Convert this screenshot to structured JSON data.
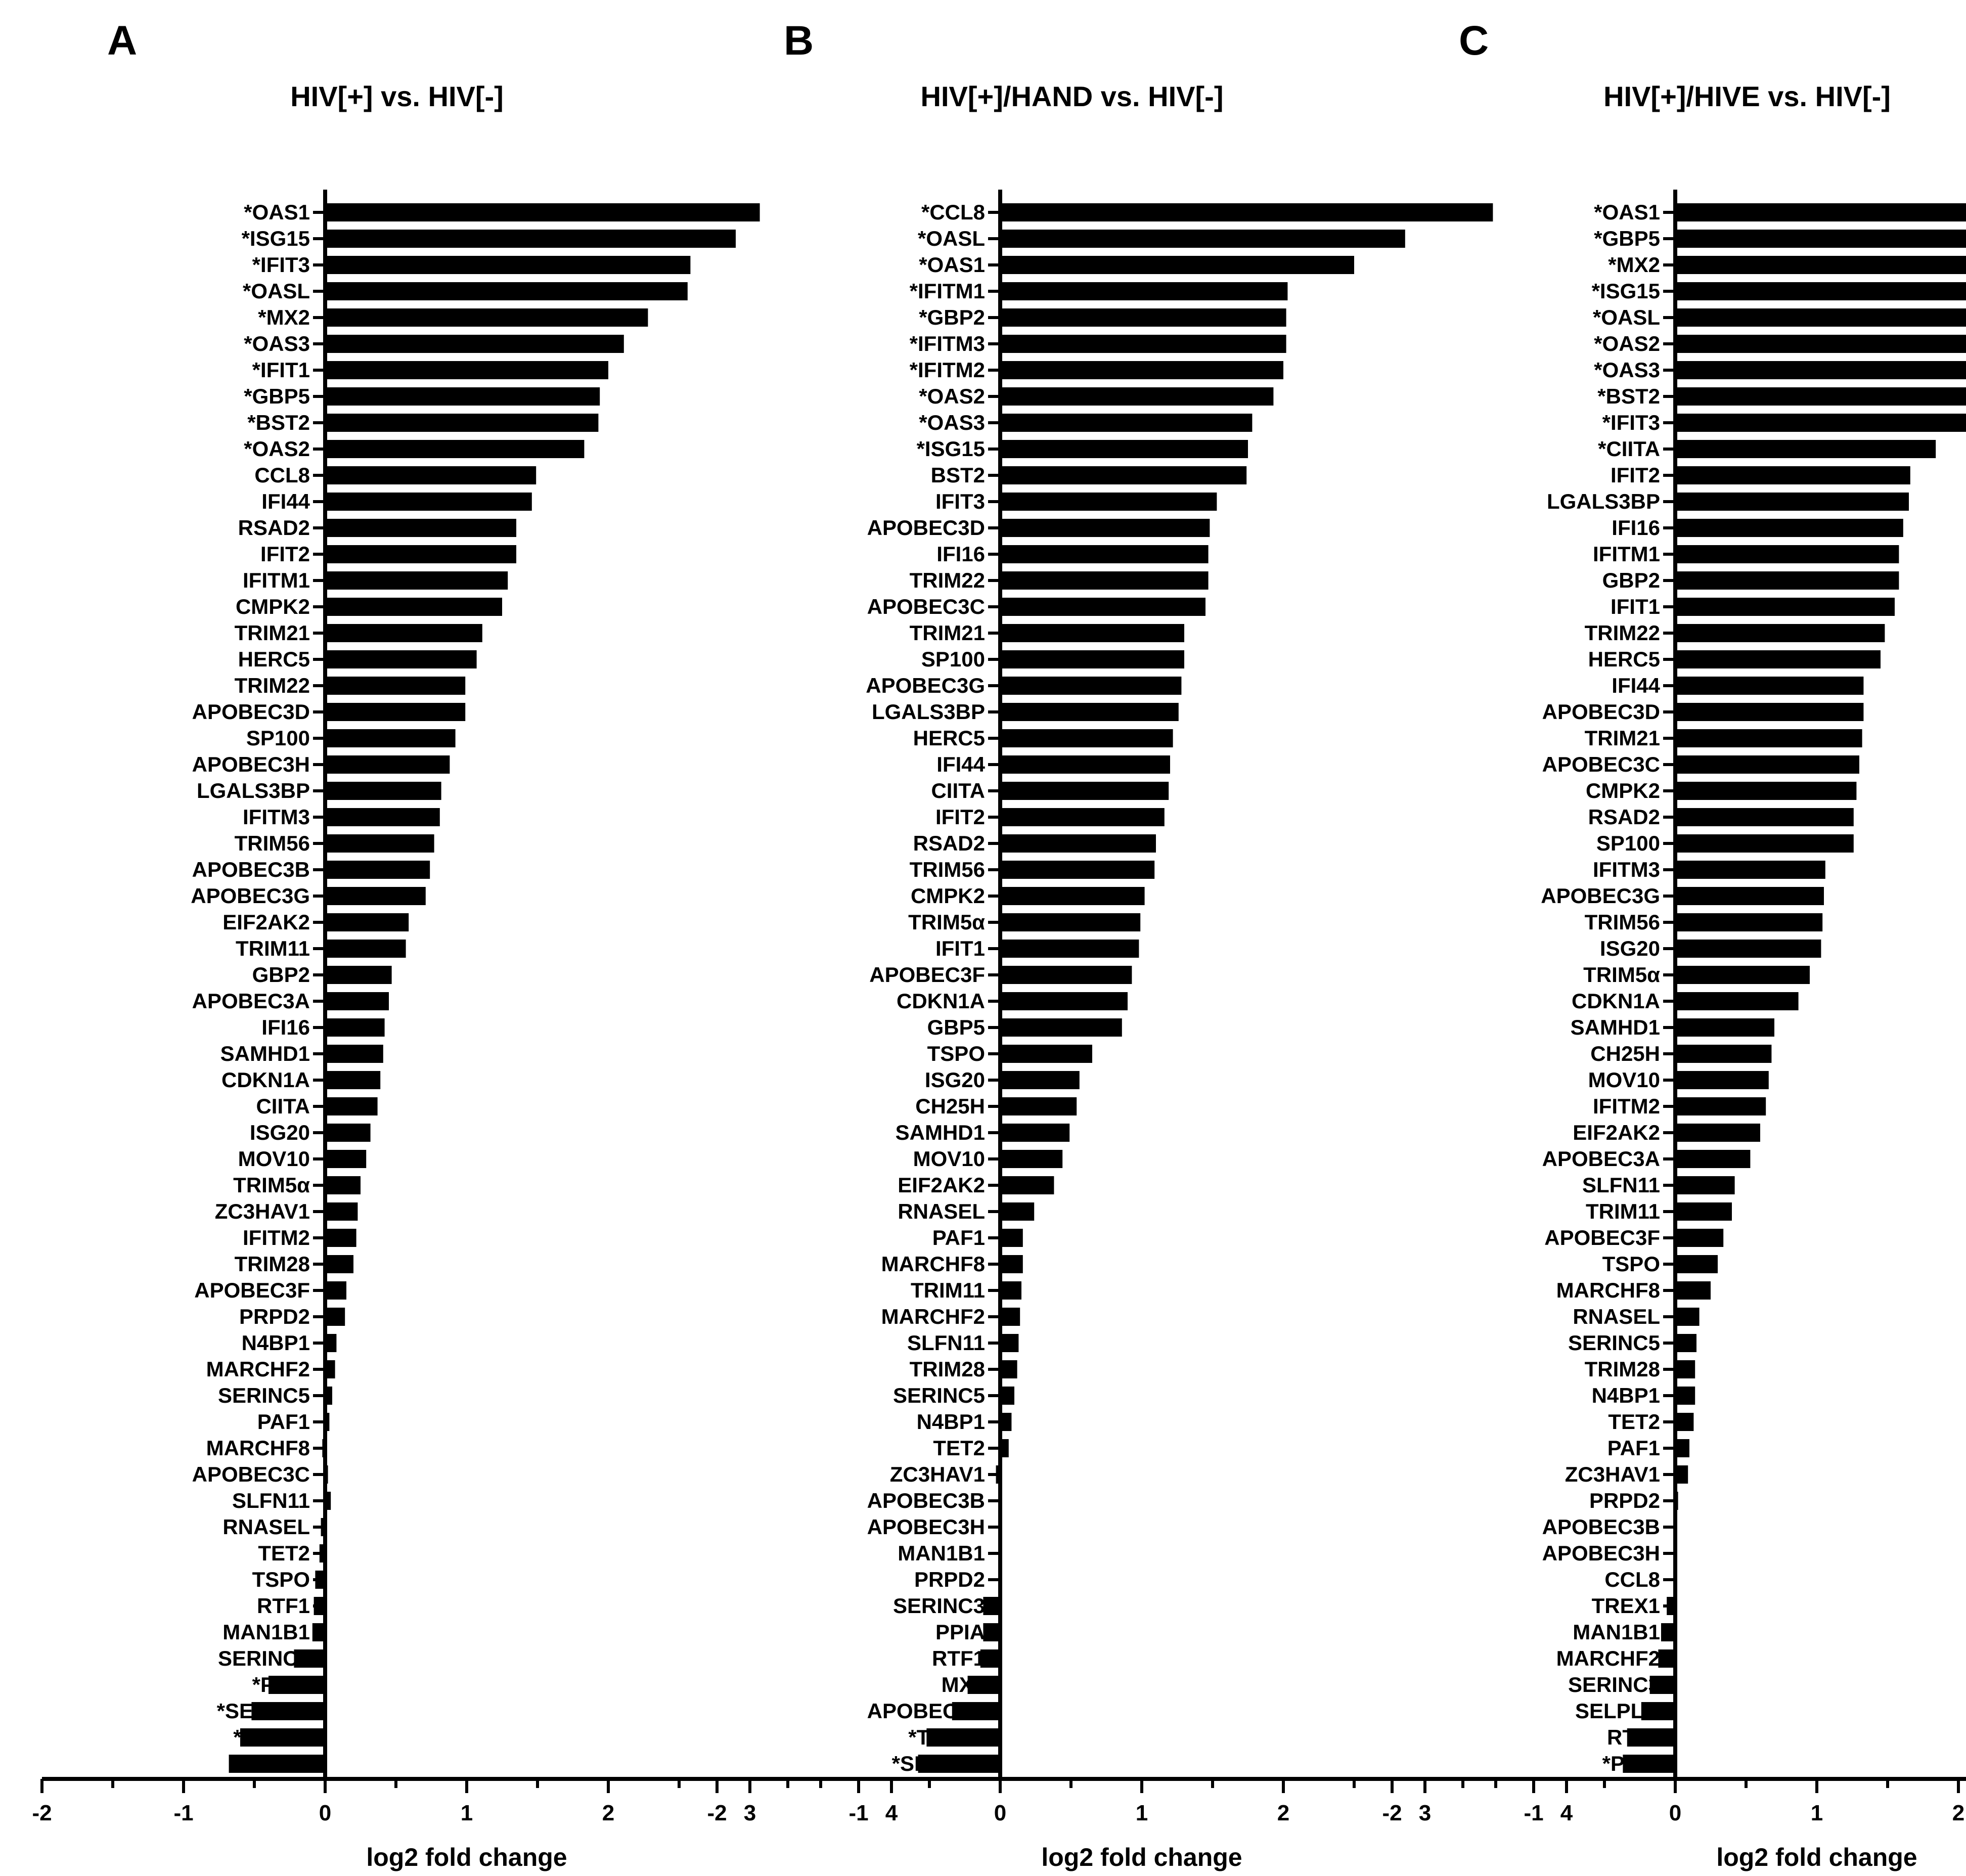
{
  "chart_data": [
    {
      "type": "bar",
      "orientation": "horizontal",
      "panel_letter": "A",
      "title": "HIV[+] vs. HIV[-]",
      "xlabel": "log2 fold change",
      "xlim": [
        -2,
        4
      ],
      "xticks": [
        "-2",
        "-1",
        "0",
        "1",
        "2",
        "3",
        "4"
      ],
      "grid": false,
      "categories": [
        "*OAS1",
        "*ISG15",
        "*IFIT3",
        "*OASL",
        "*MX2",
        "*OAS3",
        "*IFIT1",
        "*GBP5",
        "*BST2",
        "*OAS2",
        "CCL8",
        "IFI44",
        "RSAD2",
        "IFIT2",
        "IFITM1",
        "CMPK2",
        "TRIM21",
        "HERC5",
        "TRIM22",
        "APOBEC3D",
        "SP100",
        "APOBEC3H",
        "LGALS3BP",
        "IFITM3",
        "TRIM56",
        "APOBEC3B",
        "APOBEC3G",
        "EIF2AK2",
        "TRIM11",
        "GBP2",
        "APOBEC3A",
        "IFI16",
        "SAMHD1",
        "CDKN1A",
        "CIITA",
        "ISG20",
        "MOV10",
        "TRIM5α",
        "ZC3HAV1",
        "IFITM2",
        "TRIM28",
        "APOBEC3F",
        "PRPD2",
        "N4BP1",
        "MARCHF2",
        "SERINC5",
        "PAF1",
        "MARCHF8",
        "APOBEC3C",
        "SLFN11",
        "RNASEL",
        "TET2",
        "TSPO",
        "RTF1",
        "MAN1B1",
        "SERINC3",
        "*PPIA",
        "*SELPLG",
        "*TREX1",
        "*CH25H"
      ],
      "values": [
        3.07,
        2.9,
        2.58,
        2.56,
        2.28,
        2.11,
        2.0,
        1.94,
        1.93,
        1.83,
        1.49,
        1.46,
        1.35,
        1.35,
        1.29,
        1.25,
        1.11,
        1.07,
        0.99,
        0.99,
        0.92,
        0.88,
        0.82,
        0.81,
        0.77,
        0.74,
        0.71,
        0.59,
        0.57,
        0.47,
        0.45,
        0.42,
        0.41,
        0.39,
        0.37,
        0.32,
        0.29,
        0.25,
        0.23,
        0.22,
        0.2,
        0.15,
        0.14,
        0.08,
        0.07,
        0.05,
        0.03,
        -0.02,
        0.02,
        0.04,
        -0.03,
        -0.04,
        -0.07,
        -0.08,
        -0.09,
        -0.22,
        -0.4,
        -0.52,
        -0.6,
        -0.68
      ]
    },
    {
      "type": "bar",
      "orientation": "horizontal",
      "panel_letter": "B",
      "title": "HIV[+]/HAND vs. HIV[-]",
      "xlabel": "log2 fold change",
      "xlim": [
        -2,
        4
      ],
      "xticks": [
        "-2",
        "-1",
        "0",
        "1",
        "2",
        "3",
        "4"
      ],
      "grid": false,
      "categories": [
        "*CCL8",
        "*OASL",
        "*OAS1",
        "*IFITM1",
        "*GBP2",
        "*IFITM3",
        "*IFITM2",
        "*OAS2",
        "*OAS3",
        "*ISG15",
        "BST2",
        "IFIT3",
        "APOBEC3D",
        "IFI16",
        "TRIM22",
        "APOBEC3C",
        "TRIM21",
        "SP100",
        "APOBEC3G",
        "LGALS3BP",
        "HERC5",
        "IFI44",
        "CIITA",
        "IFIT2",
        "RSAD2",
        "TRIM56",
        "CMPK2",
        "TRIM5α",
        "IFIT1",
        "APOBEC3F",
        "CDKN1A",
        "GBP5",
        "TSPO",
        "ISG20",
        "CH25H",
        "SAMHD1",
        "MOV10",
        "EIF2AK2",
        "RNASEL",
        "PAF1",
        "MARCHF8",
        "TRIM11",
        "MARCHF2",
        "SLFN11",
        "TRIM28",
        "SERINC5",
        "N4BP1",
        "TET2",
        "ZC3HAV1",
        "APOBEC3B",
        "APOBEC3H",
        "MAN1B1",
        "PRPD2",
        "SERINC3",
        "PPIA",
        "RTF1",
        "MX2",
        "APOBEC3A",
        "*TREX1",
        "*SELPLG"
      ],
      "values": [
        3.48,
        2.86,
        2.5,
        2.03,
        2.02,
        2.02,
        2.0,
        1.93,
        1.78,
        1.75,
        1.74,
        1.53,
        1.48,
        1.47,
        1.47,
        1.45,
        1.3,
        1.3,
        1.28,
        1.26,
        1.22,
        1.2,
        1.19,
        1.16,
        1.1,
        1.09,
        1.02,
        0.99,
        0.98,
        0.93,
        0.9,
        0.86,
        0.65,
        0.56,
        0.54,
        0.49,
        0.44,
        0.38,
        0.24,
        0.16,
        0.16,
        0.15,
        0.14,
        0.13,
        0.12,
        0.1,
        0.08,
        0.06,
        -0.03,
        0.01,
        0.01,
        0.01,
        0.01,
        -0.12,
        -0.12,
        -0.14,
        -0.23,
        -0.34,
        -0.52,
        -0.58
      ]
    },
    {
      "type": "bar",
      "orientation": "horizontal",
      "panel_letter": "C",
      "title": "HIV[+]/HIVE vs. HIV[-]",
      "xlabel": "log2 fold change",
      "xlim": [
        -2,
        4
      ],
      "xticks": [
        "-2",
        "-1",
        "0",
        "1",
        "2",
        "3",
        "4"
      ],
      "grid": false,
      "categories": [
        "*OAS1",
        "*GBP5",
        "*MX2",
        "*ISG15",
        "*OASL",
        "*OAS2",
        "*OAS3",
        "*BST2",
        "*IFIT3",
        "*CIITA",
        "IFIT2",
        "LGALS3BP",
        "IFI16",
        "IFITM1",
        "GBP2",
        "IFIT1",
        "TRIM22",
        "HERC5",
        "IFI44",
        "APOBEC3D",
        "TRIM21",
        "APOBEC3C",
        "CMPK2",
        "RSAD2",
        "SP100",
        "IFITM3",
        "APOBEC3G",
        "TRIM56",
        "ISG20",
        "TRIM5α",
        "CDKN1A",
        "SAMHD1",
        "CH25H",
        "MOV10",
        "IFITM2",
        "EIF2AK2",
        "APOBEC3A",
        "SLFN11",
        "TRIM11",
        "APOBEC3F",
        "TSPO",
        "MARCHF8",
        "RNASEL",
        "SERINC5",
        "TRIM28",
        "N4BP1",
        "TET2",
        "PAF1",
        "ZC3HAV1",
        "PRPD2",
        "APOBEC3B",
        "APOBEC3H",
        "CCL8",
        "TREX1",
        "MAN1B1",
        "MARCHF2",
        "SERINC3",
        "SELPLG",
        "RTF1",
        "*PPIA"
      ],
      "values": [
        3.43,
        3.25,
        2.88,
        2.78,
        2.76,
        2.39,
        2.39,
        2.25,
        2.17,
        1.84,
        1.66,
        1.65,
        1.61,
        1.58,
        1.58,
        1.55,
        1.48,
        1.45,
        1.33,
        1.33,
        1.32,
        1.3,
        1.28,
        1.26,
        1.26,
        1.06,
        1.05,
        1.04,
        1.03,
        0.95,
        0.87,
        0.7,
        0.68,
        0.66,
        0.64,
        0.6,
        0.53,
        0.42,
        0.4,
        0.34,
        0.3,
        0.25,
        0.17,
        0.15,
        0.14,
        0.14,
        0.13,
        0.1,
        0.09,
        0.02,
        0.01,
        0.01,
        0.0,
        -0.06,
        -0.1,
        -0.12,
        -0.18,
        -0.24,
        -0.34,
        -0.37
      ]
    }
  ]
}
